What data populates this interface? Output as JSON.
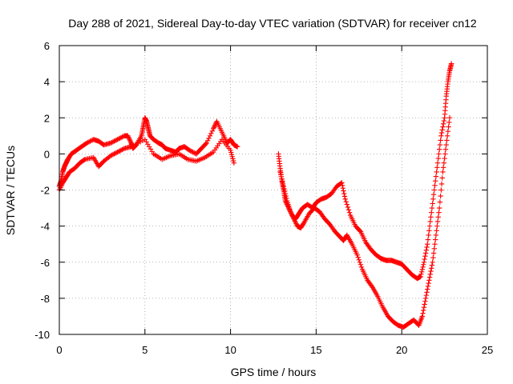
{
  "chart_data": {
    "type": "scatter",
    "title": "Day 288 of 2021, Sidereal Day-to-day VTEC variation (SDTVAR) for receiver cn12",
    "xlabel": "GPS time / hours",
    "ylabel": "SDTVAR / TECUs",
    "xlim": [
      0,
      25
    ],
    "ylim": [
      -10,
      6
    ],
    "xticks": [
      0,
      5,
      10,
      15,
      20,
      25
    ],
    "yticks": [
      -10,
      -8,
      -6,
      -4,
      -2,
      0,
      2,
      4,
      6
    ],
    "grid": true,
    "marker": "+",
    "colors": {
      "series": "#ff0000",
      "grid": "#a0a0a0",
      "axis": "#000000"
    },
    "series": [
      {
        "name": "SDTVAR (main trace)",
        "x": [
          0.0,
          0.1,
          0.2,
          0.3,
          0.4,
          0.5,
          0.7,
          1.0,
          1.3,
          1.6,
          2.0,
          2.3,
          2.6,
          3.0,
          3.4,
          3.8,
          4.0,
          4.2,
          4.3,
          4.5,
          4.8,
          4.9,
          5.0,
          5.1,
          5.2,
          5.3,
          5.5,
          5.8,
          6.0,
          6.2,
          6.5,
          6.8,
          7.0,
          7.3,
          7.6,
          8.0,
          8.3,
          8.6,
          9.0,
          9.2,
          9.5,
          9.8,
          10.0,
          10.2,
          10.4
        ],
        "y": [
          -1.8,
          -1.5,
          -1.0,
          -0.7,
          -0.5,
          -0.3,
          0.0,
          0.2,
          0.4,
          0.6,
          0.8,
          0.7,
          0.5,
          0.6,
          0.8,
          1.0,
          1.0,
          0.6,
          0.3,
          0.5,
          1.0,
          1.5,
          2.0,
          1.8,
          1.4,
          1.0,
          0.8,
          0.6,
          0.5,
          0.3,
          0.2,
          0.1,
          0.3,
          0.4,
          0.2,
          0.0,
          0.3,
          0.6,
          1.4,
          1.8,
          1.2,
          0.6,
          0.8,
          0.5,
          0.4
        ]
      },
      {
        "name": "SDTVAR (secondary trace)",
        "x": [
          0.0,
          0.2,
          0.4,
          0.6,
          0.9,
          1.2,
          1.5,
          2.0,
          2.3,
          2.6,
          3.0,
          3.4,
          3.8,
          4.2,
          5.0,
          5.5,
          6.0,
          6.5,
          7.0,
          7.5,
          8.0,
          8.5,
          9.0,
          9.5,
          10.0,
          10.2
        ],
        "y": [
          -2.0,
          -1.6,
          -1.3,
          -1.0,
          -0.8,
          -0.5,
          -0.3,
          -0.2,
          -0.7,
          -0.4,
          -0.1,
          0.1,
          0.3,
          0.4,
          0.8,
          0.0,
          -0.3,
          -0.1,
          0.0,
          -0.3,
          -0.4,
          -0.2,
          0.1,
          0.8,
          0.2,
          -0.5
        ]
      },
      {
        "name": "SDTVAR (afternoon trace)",
        "x": [
          12.8,
          12.9,
          13.0,
          13.1,
          13.2,
          13.4,
          13.6,
          13.8,
          14.0,
          14.2,
          14.5,
          14.8,
          15.0,
          15.3,
          15.6,
          15.9,
          16.2,
          16.5,
          16.7,
          17.0,
          17.3,
          17.6,
          17.9,
          18.2,
          18.5,
          18.8,
          19.1,
          19.4,
          19.7,
          20.0,
          20.3,
          20.6,
          20.9,
          21.1,
          21.3,
          21.5,
          21.7,
          21.9,
          22.1,
          22.3,
          22.5,
          22.6,
          22.7,
          22.8,
          22.9
        ],
        "y": [
          0.0,
          -0.8,
          -1.5,
          -2.0,
          -2.6,
          -3.0,
          -3.4,
          -3.6,
          -3.3,
          -3.0,
          -2.8,
          -3.0,
          -2.7,
          -2.5,
          -2.4,
          -2.2,
          -1.8,
          -1.6,
          -2.5,
          -3.4,
          -4.0,
          -4.3,
          -4.9,
          -5.3,
          -5.6,
          -5.8,
          -5.9,
          -5.9,
          -6.0,
          -6.1,
          -6.4,
          -6.7,
          -6.9,
          -6.8,
          -6.0,
          -5.0,
          -3.5,
          -2.0,
          -0.5,
          1.0,
          2.0,
          3.2,
          4.0,
          4.6,
          5.0
        ]
      },
      {
        "name": "SDTVAR (afternoon lower trace)",
        "x": [
          12.9,
          13.1,
          13.3,
          13.5,
          13.7,
          13.9,
          14.1,
          14.3,
          14.6,
          14.9,
          15.2,
          15.5,
          15.8,
          16.1,
          16.4,
          16.6,
          16.8,
          17.1,
          17.4,
          17.7,
          18.0,
          18.3,
          18.6,
          18.9,
          19.2,
          19.5,
          19.8,
          20.1,
          20.4,
          20.7,
          21.0,
          21.2,
          21.4,
          21.6,
          21.8,
          22.0,
          22.2,
          22.4,
          22.6,
          22.8
        ],
        "y": [
          -1.0,
          -1.8,
          -2.6,
          -3.2,
          -3.6,
          -4.0,
          -4.1,
          -3.8,
          -3.3,
          -3.0,
          -3.2,
          -3.6,
          -3.9,
          -4.3,
          -4.6,
          -4.8,
          -4.5,
          -5.0,
          -5.6,
          -6.4,
          -7.0,
          -7.4,
          -7.9,
          -8.5,
          -9.0,
          -9.3,
          -9.5,
          -9.6,
          -9.4,
          -9.2,
          -9.5,
          -9.0,
          -8.0,
          -7.0,
          -6.0,
          -4.5,
          -3.0,
          -1.0,
          0.5,
          2.0
        ]
      }
    ]
  }
}
